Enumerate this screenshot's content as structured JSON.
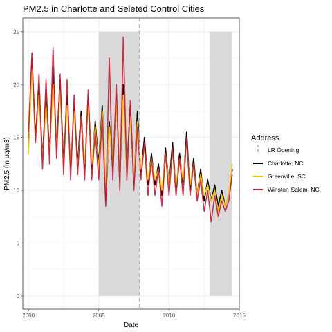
{
  "chart_data": {
    "type": "line",
    "title": "PM2.5 in Charlotte and Seleted Control Cities",
    "xlabel": "Date",
    "ylabel": "PM2.5 (in ug/m3)",
    "xlim": [
      1999.6,
      2015.0
    ],
    "ylim": [
      -1.25,
      26.3
    ],
    "x_ticks": [
      2000,
      2005,
      2010,
      2015
    ],
    "x_tick_labels": [
      "2000",
      "2005",
      "2010",
      "2015"
    ],
    "y_ticks": [
      0,
      5,
      10,
      15,
      20,
      25
    ],
    "y_tick_labels": [
      "0",
      "5",
      "10",
      "15",
      "20",
      "25"
    ],
    "grid": true,
    "legend_position": "right",
    "legend_title": "Address",
    "shaded_periods": [
      {
        "x0": 2005.0,
        "x1": 2007.9,
        "ymax": 25,
        "color": "#d9d9d9"
      },
      {
        "x0": 2012.9,
        "x1": 2014.5,
        "ymax": 25,
        "color": "#d9d9d9"
      }
    ],
    "vline": {
      "x": 2007.9,
      "name": "LR Opening",
      "color": "#b3b3b3",
      "style": "dashed"
    },
    "series": [
      {
        "name": "Charlotte, NC",
        "color": "#000000",
        "x": [
          2000.0,
          2000.25,
          2000.5,
          2000.75,
          2001.0,
          2001.25,
          2001.5,
          2001.75,
          2002.0,
          2002.25,
          2002.5,
          2002.75,
          2003.0,
          2003.25,
          2003.5,
          2003.75,
          2004.0,
          2004.25,
          2004.5,
          2004.75,
          2005.0,
          2005.25,
          2005.5,
          2005.75,
          2006.0,
          2006.25,
          2006.5,
          2006.75,
          2007.0,
          2007.25,
          2007.5,
          2007.75,
          2008.0,
          2008.25,
          2008.5,
          2008.75,
          2009.0,
          2009.25,
          2009.5,
          2009.75,
          2010.0,
          2010.25,
          2010.5,
          2010.75,
          2011.0,
          2011.25,
          2011.5,
          2011.75,
          2012.0,
          2012.25,
          2012.5,
          2012.75,
          2013.0,
          2013.25,
          2013.5,
          2013.75,
          2014.0,
          2014.25,
          2014.5
        ],
        "y": [
          14.0,
          22.5,
          15.0,
          20.0,
          13.0,
          19.5,
          13.5,
          21.5,
          14.0,
          20.5,
          12.5,
          19.0,
          12.0,
          18.0,
          12.5,
          17.5,
          12.0,
          19.0,
          12.0,
          16.5,
          12.5,
          18.0,
          9.0,
          16.5,
          12.0,
          19.0,
          11.0,
          20.0,
          12.0,
          18.0,
          10.5,
          17.5,
          11.5,
          15.0,
          10.5,
          13.5,
          10.5,
          12.5,
          9.5,
          14.0,
          10.5,
          14.5,
          10.0,
          13.5,
          10.5,
          15.5,
          10.0,
          13.0,
          9.5,
          12.0,
          9.0,
          11.0,
          9.0,
          10.5,
          8.5,
          10.0,
          8.5,
          9.5,
          12.0
        ]
      },
      {
        "name": "Greenville, SC",
        "color": "#f5c400",
        "x": [
          2000.0,
          2000.25,
          2000.5,
          2000.75,
          2001.0,
          2001.25,
          2001.5,
          2001.75,
          2002.0,
          2002.25,
          2002.5,
          2002.75,
          2003.0,
          2003.25,
          2003.5,
          2003.75,
          2004.0,
          2004.25,
          2004.5,
          2004.75,
          2005.0,
          2005.25,
          2005.5,
          2005.75,
          2006.0,
          2006.25,
          2006.5,
          2006.75,
          2007.0,
          2007.25,
          2007.5,
          2007.75,
          2008.0,
          2008.25,
          2008.5,
          2008.75,
          2009.0,
          2009.25,
          2009.5,
          2009.75,
          2010.0,
          2010.25,
          2010.5,
          2010.75,
          2011.0,
          2011.25,
          2011.5,
          2011.75,
          2012.0,
          2012.25,
          2012.5,
          2012.75,
          2013.0,
          2013.25,
          2013.5,
          2013.75,
          2014.0,
          2014.25,
          2014.5
        ],
        "y": [
          13.5,
          21.5,
          14.5,
          19.0,
          13.0,
          18.0,
          13.5,
          20.0,
          14.0,
          19.5,
          12.0,
          18.0,
          12.5,
          17.5,
          12.0,
          17.0,
          12.5,
          18.0,
          12.5,
          16.0,
          12.0,
          17.5,
          10.0,
          16.0,
          12.5,
          18.5,
          11.5,
          19.0,
          12.0,
          17.0,
          11.0,
          16.5,
          12.0,
          14.0,
          11.0,
          13.0,
          11.0,
          12.0,
          10.0,
          13.5,
          10.5,
          13.5,
          10.5,
          13.0,
          11.0,
          14.5,
          10.5,
          12.5,
          9.5,
          11.5,
          9.5,
          10.5,
          9.0,
          10.0,
          8.0,
          9.5,
          8.5,
          9.5,
          12.5
        ]
      },
      {
        "name": "Winston-Salem, NC",
        "color": "#c41e3a",
        "x": [
          2000.0,
          2000.25,
          2000.5,
          2000.75,
          2001.0,
          2001.25,
          2001.5,
          2001.75,
          2002.0,
          2002.25,
          2002.5,
          2002.75,
          2003.0,
          2003.25,
          2003.5,
          2003.75,
          2004.0,
          2004.25,
          2004.5,
          2004.75,
          2005.0,
          2005.25,
          2005.5,
          2005.75,
          2006.0,
          2006.25,
          2006.5,
          2006.75,
          2007.0,
          2007.25,
          2007.5,
          2007.75,
          2008.0,
          2008.25,
          2008.5,
          2008.75,
          2009.0,
          2009.25,
          2009.5,
          2009.75,
          2010.0,
          2010.25,
          2010.5,
          2010.75,
          2011.0,
          2011.25,
          2011.5,
          2011.75,
          2012.0,
          2012.25,
          2012.5,
          2012.75,
          2013.0,
          2013.25,
          2013.5,
          2013.75,
          2014.0,
          2014.25,
          2014.5
        ],
        "y": [
          15.5,
          23.0,
          14.5,
          21.0,
          12.0,
          20.5,
          12.5,
          23.5,
          13.0,
          21.0,
          11.5,
          20.5,
          11.0,
          19.0,
          11.5,
          17.0,
          11.0,
          19.5,
          11.0,
          15.5,
          11.0,
          17.0,
          8.5,
          22.5,
          11.0,
          20.0,
          10.0,
          24.5,
          11.0,
          18.5,
          10.0,
          16.0,
          11.0,
          14.5,
          9.5,
          13.0,
          9.5,
          12.0,
          8.5,
          13.5,
          9.5,
          14.0,
          9.5,
          13.0,
          9.5,
          15.0,
          9.5,
          12.5,
          9.0,
          11.0,
          8.0,
          10.0,
          7.0,
          9.5,
          7.5,
          9.0,
          8.0,
          9.0,
          11.5
        ]
      }
    ]
  }
}
